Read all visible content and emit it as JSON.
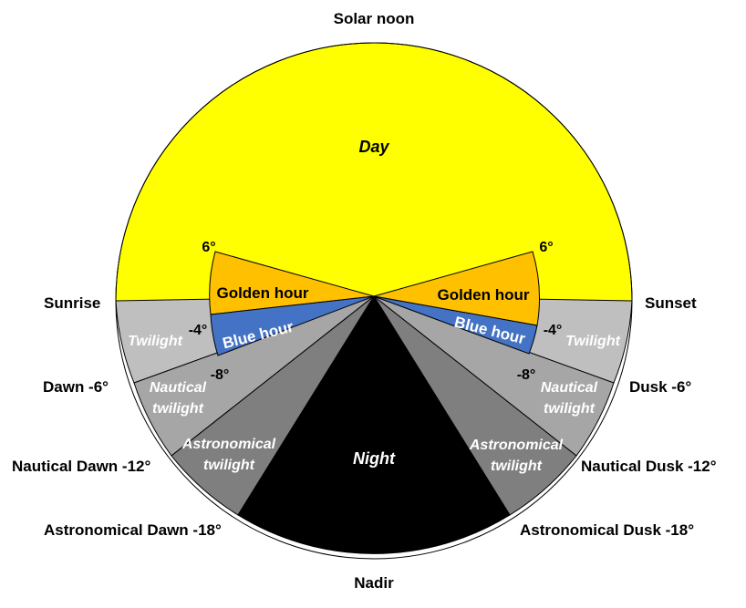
{
  "colors": {
    "day": "#ffff00",
    "golden_hour": "#ffc000",
    "blue_hour": "#4472c4",
    "civil_twilight": "#bfbfbf",
    "nautical_twilight": "#a6a6a6",
    "astronomical_twilight": "#7f7f7f",
    "night": "#000000",
    "outline": "#000000",
    "light_text": "#ffffff",
    "dark_text": "#000000"
  },
  "outer_labels": {
    "solar_noon": "Solar noon",
    "nadir": "Nadir",
    "sunrise": "Sunrise",
    "sunset": "Sunset",
    "dawn": "Dawn -6°",
    "dusk": "Dusk -6°",
    "nautical_dawn": "Nautical Dawn -12°",
    "nautical_dusk": "Nautical Dusk -12°",
    "astronomical_dawn": "Astronomical Dawn -18°",
    "astronomical_dusk": "Astronomical Dusk -18°"
  },
  "regions": {
    "day": "Day",
    "night": "Night",
    "golden_hour": "Golden hour",
    "blue_hour": "Blue hour",
    "twilight": "Twilight",
    "nautical_line1": "Nautical",
    "nautical_line2": "twilight",
    "astronomical_line1": "Astronomical",
    "astronomical_line2": "twilight"
  },
  "degree_marks": {
    "plus6": "6°",
    "minus4": "-4°",
    "minus8": "-8°"
  }
}
